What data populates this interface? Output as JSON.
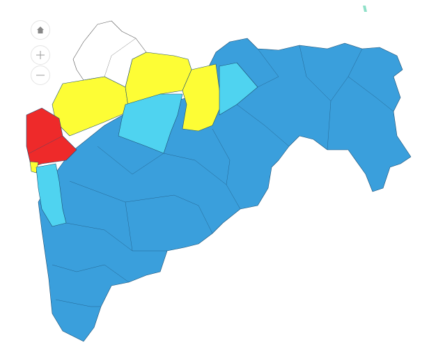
{
  "map": {
    "controls": [
      {
        "name": "home-button",
        "icon": "home-icon"
      },
      {
        "name": "zoom-in-button",
        "icon": "plus-icon"
      },
      {
        "name": "zoom-out-button",
        "icon": "minus-icon"
      }
    ],
    "colors": {
      "blue": "#3a9fdc",
      "cyan": "#4fd3f0",
      "yellow": "#fdfd35",
      "red": "#ee2a2a",
      "white": "#ffffff"
    }
  }
}
